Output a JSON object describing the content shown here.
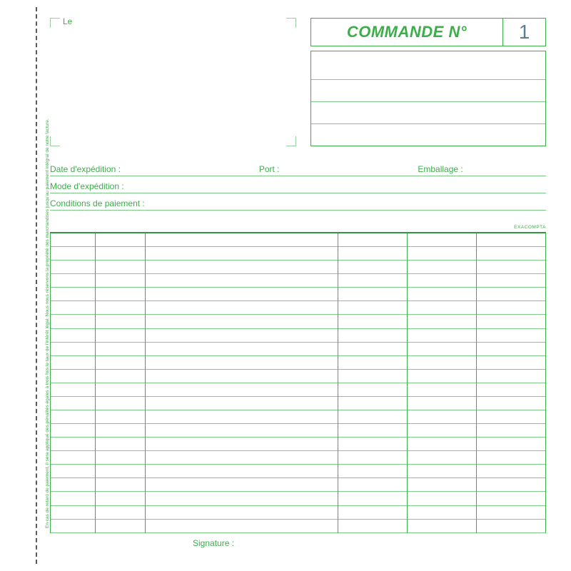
{
  "colors": {
    "green": "#3bae4a",
    "green_dark": "#2e9a3d",
    "number_blue": "#5b7f93",
    "perforation": "#5a5a5a",
    "corner": "#9bd0a3",
    "line_light": "#7fcb8a"
  },
  "header": {
    "le_label": "Le",
    "order_label": "COMMANDE N°",
    "order_number": "1",
    "ref_line_count": 3
  },
  "fields": [
    [
      {
        "label": "Date d'expédition :"
      },
      {
        "label": "Port :"
      },
      {
        "label": "Emballage :"
      }
    ],
    [
      {
        "label": "Mode d'expédition :"
      }
    ],
    [
      {
        "label": "Conditions de paiement :"
      }
    ]
  ],
  "brand": "EXACOMPTA",
  "grid": {
    "row_count": 22,
    "col_positions_pct": [
      9,
      19,
      58,
      72,
      86
    ]
  },
  "signature_label": "Signature :",
  "side_note": "En cas de retard de paiement, il sera appliqué des pénalités égales à trois fois le taux de l'intérêt légal. Nous nous réservons la propriété des marchandises jusqu'au paiement intégral de notre facture."
}
